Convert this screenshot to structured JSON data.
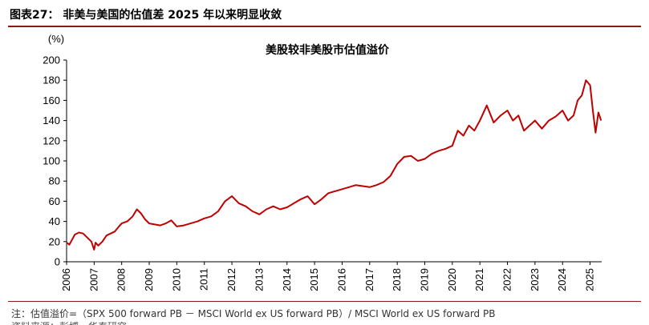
{
  "figure": {
    "title": "图表27：  非美与美国的估值差 2025 年以来明显收敛",
    "note": "注：估值溢价=（SPX 500 forward PB  －  MSCI World ex US forward PB）/ MSCI World ex US forward PB",
    "source_partial": "资料来源：彭博，华泰研究"
  },
  "chart_data": {
    "type": "line",
    "title": "美股较非美股市估值溢价",
    "ylabel": "(%)",
    "xlabel": "",
    "ylim": [
      0,
      200
    ],
    "yticks": [
      0,
      20,
      40,
      60,
      80,
      100,
      120,
      140,
      160,
      180,
      200
    ],
    "xlim": [
      2006,
      2025.42
    ],
    "xticks": [
      "2006",
      "2007",
      "2008",
      "2009",
      "2010",
      "2011",
      "2012",
      "2013",
      "2014",
      "2015",
      "2016",
      "2017",
      "2018",
      "2019",
      "2020",
      "2021",
      "2022",
      "2023",
      "2024",
      "2025"
    ],
    "grid": false,
    "legend": "none",
    "series": [
      {
        "color": "#c00000",
        "x": [
          2006.0,
          2006.1,
          2006.2,
          2006.3,
          2006.45,
          2006.6,
          2006.75,
          2006.9,
          2007.0,
          2007.05,
          2007.15,
          2007.3,
          2007.45,
          2007.6,
          2007.75,
          2007.9,
          2008.0,
          2008.2,
          2008.4,
          2008.55,
          2008.7,
          2008.85,
          2009.0,
          2009.2,
          2009.4,
          2009.6,
          2009.8,
          2010.0,
          2010.25,
          2010.5,
          2010.75,
          2011.0,
          2011.25,
          2011.5,
          2011.75,
          2012.0,
          2012.25,
          2012.5,
          2012.75,
          2013.0,
          2013.25,
          2013.5,
          2013.75,
          2014.0,
          2014.25,
          2014.5,
          2014.75,
          2015.0,
          2015.25,
          2015.5,
          2015.75,
          2016.0,
          2016.25,
          2016.5,
          2016.75,
          2017.0,
          2017.25,
          2017.5,
          2017.75,
          2018.0,
          2018.25,
          2018.5,
          2018.75,
          2019.0,
          2019.25,
          2019.5,
          2019.75,
          2020.0,
          2020.2,
          2020.4,
          2020.6,
          2020.8,
          2021.0,
          2021.25,
          2021.5,
          2021.75,
          2022.0,
          2022.2,
          2022.4,
          2022.6,
          2022.8,
          2023.0,
          2023.25,
          2023.5,
          2023.75,
          2024.0,
          2024.2,
          2024.4,
          2024.55,
          2024.7,
          2024.85,
          2025.0,
          2025.1,
          2025.2,
          2025.3,
          2025.4
        ],
        "values": [
          19,
          17,
          22,
          27,
          29,
          28,
          24,
          20,
          12,
          19,
          16,
          20,
          26,
          28,
          30,
          35,
          38,
          40,
          45,
          52,
          48,
          42,
          38,
          37,
          36,
          38,
          41,
          35,
          36,
          38,
          40,
          43,
          45,
          50,
          60,
          65,
          58,
          55,
          50,
          47,
          52,
          55,
          52,
          54,
          58,
          62,
          65,
          57,
          62,
          68,
          70,
          72,
          74,
          76,
          75,
          74,
          76,
          79,
          85,
          97,
          104,
          105,
          100,
          102,
          107,
          110,
          112,
          115,
          130,
          125,
          135,
          130,
          140,
          155,
          138,
          145,
          150,
          140,
          145,
          130,
          135,
          140,
          132,
          140,
          144,
          150,
          140,
          145,
          160,
          165,
          180,
          175,
          150,
          128,
          148,
          140
        ]
      }
    ]
  }
}
